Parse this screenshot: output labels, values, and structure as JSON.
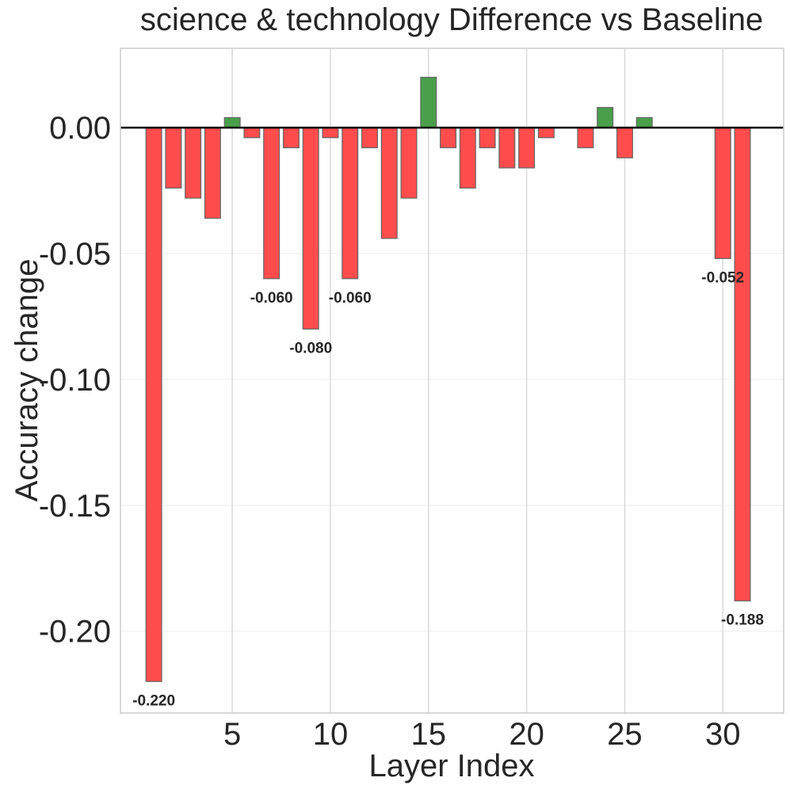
{
  "chart_data": {
    "type": "bar",
    "title": "science & technology Difference vs Baseline",
    "xlabel": "Layer Index",
    "ylabel": "Accuracy change",
    "xlim": [
      -0.7,
      33.1
    ],
    "ylim": [
      -0.2325,
      0.0315
    ],
    "xticks": [
      5,
      10,
      15,
      20,
      25,
      30
    ],
    "yticks": [
      0.0,
      -0.05,
      -0.1,
      -0.15,
      -0.2
    ],
    "ytick_labels": [
      "0.00",
      "-0.05",
      "-0.10",
      "-0.15",
      "-0.20"
    ],
    "grid": true,
    "positive_color": "#4a9f4a",
    "negative_color": "#ff4d4d",
    "edge_color": "#666666",
    "zero_line_color": "#000000",
    "layers": [
      1,
      2,
      3,
      4,
      5,
      6,
      7,
      8,
      9,
      10,
      11,
      12,
      13,
      14,
      15,
      16,
      17,
      18,
      19,
      20,
      21,
      22,
      23,
      24,
      25,
      26,
      27,
      28,
      29,
      30,
      31
    ],
    "values": [
      -0.22,
      -0.024,
      -0.028,
      -0.036,
      0.004,
      -0.004,
      -0.06,
      -0.008,
      -0.08,
      -0.004,
      -0.06,
      -0.008,
      -0.044,
      -0.028,
      0.02,
      -0.008,
      -0.024,
      -0.008,
      -0.016,
      -0.016,
      -0.004,
      0.0,
      -0.008,
      0.008,
      -0.012,
      0.004,
      0.0,
      0.0,
      0.0,
      -0.052,
      -0.188
    ],
    "annotations": [
      {
        "layer": 1,
        "value": -0.22,
        "text": "-0.220"
      },
      {
        "layer": 7,
        "value": -0.06,
        "text": "-0.060"
      },
      {
        "layer": 9,
        "value": -0.08,
        "text": "-0.080"
      },
      {
        "layer": 11,
        "value": -0.06,
        "text": "-0.060"
      },
      {
        "layer": 30,
        "value": -0.052,
        "text": "-0.052"
      },
      {
        "layer": 31,
        "value": -0.188,
        "text": "-0.188"
      }
    ]
  }
}
